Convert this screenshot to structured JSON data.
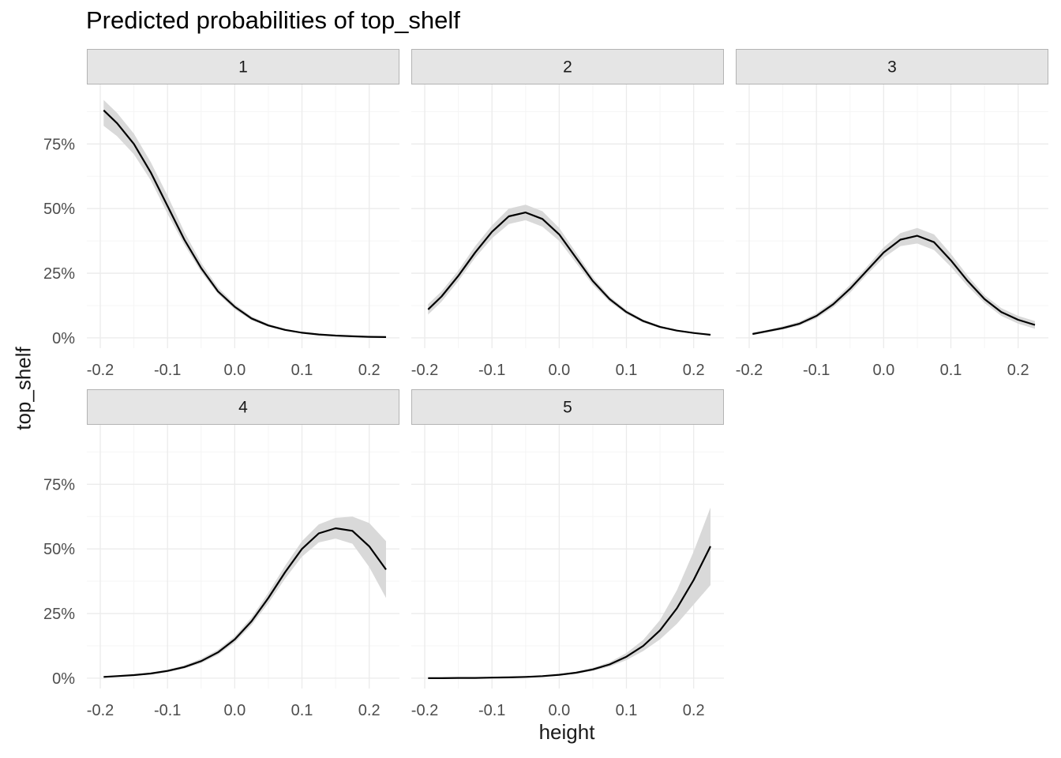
{
  "chart_data": {
    "type": "line",
    "title": "Predicted probabilities of top_shelf",
    "xlabel": "height",
    "ylabel": "top_shelf",
    "xlim": [
      -0.22,
      0.245
    ],
    "ylim": [
      -0.04,
      0.98
    ],
    "x_ticks": [
      -0.2,
      -0.1,
      0.0,
      0.1,
      0.2
    ],
    "x_tick_labels": [
      "-0.2",
      "-0.1",
      "0.0",
      "0.1",
      "0.2"
    ],
    "y_ticks": [
      0,
      0.25,
      0.5,
      0.75
    ],
    "y_tick_labels": [
      "0%",
      "25%",
      "50%",
      "75%"
    ],
    "grid": true,
    "colors": {
      "line": "#000000",
      "ribbon": "#d9d9d9",
      "strip": "#e5e5e5",
      "strip_border": "#b3b3b3",
      "grid_major": "#ebebeb",
      "grid_minor": "#f5f5f5"
    },
    "facets": [
      {
        "label": "1",
        "x": [
          -0.195,
          -0.175,
          -0.15,
          -0.125,
          -0.1,
          -0.075,
          -0.05,
          -0.025,
          0.0,
          0.025,
          0.05,
          0.075,
          0.1,
          0.125,
          0.15,
          0.175,
          0.2,
          0.225
        ],
        "y": [
          0.88,
          0.83,
          0.75,
          0.64,
          0.51,
          0.38,
          0.27,
          0.18,
          0.12,
          0.075,
          0.048,
          0.031,
          0.02,
          0.013,
          0.009,
          0.006,
          0.004,
          0.003
        ],
        "lower": [
          0.82,
          0.78,
          0.71,
          0.61,
          0.48,
          0.36,
          0.255,
          0.17,
          0.11,
          0.068,
          0.043,
          0.027,
          0.017,
          0.011,
          0.007,
          0.005,
          0.003,
          0.002
        ],
        "upper": [
          0.92,
          0.87,
          0.79,
          0.68,
          0.55,
          0.41,
          0.29,
          0.195,
          0.13,
          0.083,
          0.054,
          0.035,
          0.023,
          0.016,
          0.011,
          0.008,
          0.006,
          0.005
        ]
      },
      {
        "label": "2",
        "x": [
          -0.195,
          -0.175,
          -0.15,
          -0.125,
          -0.1,
          -0.075,
          -0.05,
          -0.025,
          0.0,
          0.025,
          0.05,
          0.075,
          0.1,
          0.125,
          0.15,
          0.175,
          0.2,
          0.225
        ],
        "y": [
          0.11,
          0.16,
          0.24,
          0.33,
          0.41,
          0.47,
          0.485,
          0.46,
          0.4,
          0.31,
          0.22,
          0.15,
          0.1,
          0.065,
          0.042,
          0.028,
          0.019,
          0.012
        ],
        "lower": [
          0.09,
          0.14,
          0.22,
          0.31,
          0.385,
          0.44,
          0.455,
          0.43,
          0.375,
          0.29,
          0.205,
          0.14,
          0.092,
          0.059,
          0.038,
          0.025,
          0.016,
          0.01
        ],
        "upper": [
          0.13,
          0.18,
          0.26,
          0.355,
          0.435,
          0.5,
          0.515,
          0.49,
          0.425,
          0.33,
          0.235,
          0.16,
          0.108,
          0.071,
          0.047,
          0.031,
          0.022,
          0.015
        ]
      },
      {
        "label": "3",
        "x": [
          -0.195,
          -0.175,
          -0.15,
          -0.125,
          -0.1,
          -0.075,
          -0.05,
          -0.025,
          0.0,
          0.025,
          0.05,
          0.075,
          0.1,
          0.125,
          0.15,
          0.175,
          0.2,
          0.225
        ],
        "y": [
          0.015,
          0.025,
          0.038,
          0.055,
          0.085,
          0.13,
          0.19,
          0.26,
          0.33,
          0.38,
          0.395,
          0.37,
          0.3,
          0.22,
          0.15,
          0.1,
          0.07,
          0.05
        ],
        "lower": [
          0.011,
          0.02,
          0.032,
          0.048,
          0.075,
          0.118,
          0.175,
          0.245,
          0.31,
          0.355,
          0.365,
          0.34,
          0.275,
          0.2,
          0.135,
          0.085,
          0.055,
          0.035
        ],
        "upper": [
          0.02,
          0.03,
          0.045,
          0.063,
          0.095,
          0.142,
          0.205,
          0.275,
          0.35,
          0.405,
          0.425,
          0.4,
          0.325,
          0.24,
          0.165,
          0.115,
          0.085,
          0.065
        ]
      },
      {
        "label": "4",
        "x": [
          -0.195,
          -0.175,
          -0.15,
          -0.125,
          -0.1,
          -0.075,
          -0.05,
          -0.025,
          0.0,
          0.025,
          0.05,
          0.075,
          0.1,
          0.125,
          0.15,
          0.175,
          0.2,
          0.225
        ],
        "y": [
          0.005,
          0.008,
          0.012,
          0.018,
          0.028,
          0.043,
          0.066,
          0.1,
          0.15,
          0.22,
          0.31,
          0.41,
          0.5,
          0.56,
          0.58,
          0.57,
          0.51,
          0.42
        ],
        "lower": [
          0.003,
          0.006,
          0.009,
          0.014,
          0.023,
          0.037,
          0.058,
          0.09,
          0.138,
          0.205,
          0.29,
          0.385,
          0.47,
          0.525,
          0.54,
          0.52,
          0.43,
          0.31
        ],
        "upper": [
          0.007,
          0.01,
          0.015,
          0.022,
          0.033,
          0.05,
          0.075,
          0.11,
          0.162,
          0.235,
          0.33,
          0.435,
          0.53,
          0.595,
          0.62,
          0.625,
          0.6,
          0.53
        ]
      },
      {
        "label": "5",
        "x": [
          -0.195,
          -0.175,
          -0.15,
          -0.125,
          -0.1,
          -0.075,
          -0.05,
          -0.025,
          0.0,
          0.025,
          0.05,
          0.075,
          0.1,
          0.125,
          0.15,
          0.175,
          0.2,
          0.225
        ],
        "y": [
          0.0,
          0.0,
          0.001,
          0.001,
          0.002,
          0.003,
          0.005,
          0.008,
          0.013,
          0.021,
          0.034,
          0.053,
          0.083,
          0.125,
          0.185,
          0.27,
          0.38,
          0.51
        ],
        "lower": [
          0.0,
          0.0,
          0.0,
          0.001,
          0.001,
          0.002,
          0.004,
          0.006,
          0.01,
          0.017,
          0.028,
          0.045,
          0.07,
          0.105,
          0.15,
          0.21,
          0.285,
          0.36
        ],
        "upper": [
          0.001,
          0.001,
          0.002,
          0.002,
          0.003,
          0.004,
          0.006,
          0.01,
          0.016,
          0.025,
          0.04,
          0.062,
          0.097,
          0.148,
          0.225,
          0.34,
          0.49,
          0.66
        ]
      }
    ]
  }
}
